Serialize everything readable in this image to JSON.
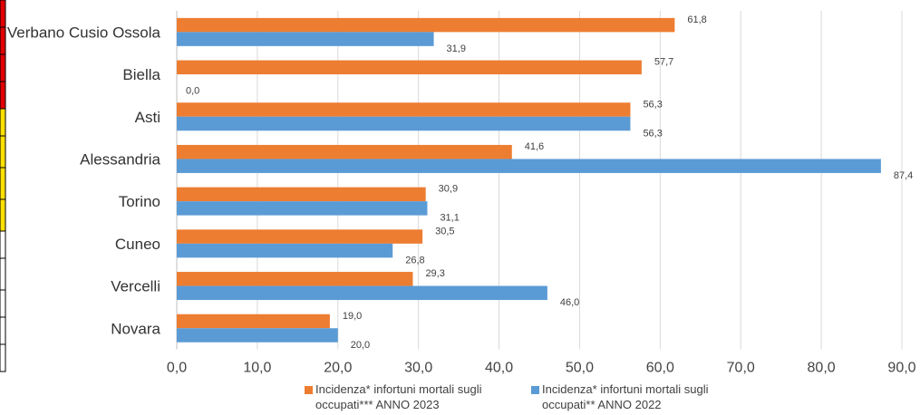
{
  "chart_data": {
    "type": "bar",
    "orientation": "horizontal",
    "categories": [
      "Verbano Cusio Ossola",
      "Biella",
      "Asti",
      "Alessandria",
      "Torino",
      "Cuneo",
      "Vercelli",
      "Novara"
    ],
    "series": [
      {
        "name": "Incidenza* infortuni mortali sugli occupati*** ANNO 2023",
        "color": "#ED7D31",
        "values": [
          61.8,
          57.7,
          56.3,
          41.6,
          30.9,
          30.5,
          29.3,
          19.0
        ],
        "labels": [
          "61,8",
          "57,7",
          "56,3",
          "41,6",
          "30,9",
          "30,5",
          "29,3",
          "19,0"
        ]
      },
      {
        "name": "Incidenza* infortuni mortali sugli occupati** ANNO 2022",
        "color": "#5B9BD5",
        "values": [
          31.9,
          0.0,
          56.3,
          87.4,
          31.1,
          26.8,
          46.0,
          20.0
        ],
        "labels": [
          "31,9",
          "0,0",
          "56,3",
          "87,4",
          "31,1",
          "26,8",
          "46,0",
          "20,0"
        ]
      }
    ],
    "x_ticks": [
      "0,0",
      "10,0",
      "20,0",
      "30,0",
      "40,0",
      "50,0",
      "60,0",
      "70,0",
      "80,0",
      "90,0"
    ],
    "xlim": [
      0,
      90
    ],
    "grid": true,
    "legend_position": "bottom",
    "left_strip_colors": [
      "#E00000",
      "#FFE000",
      "#FFFFFF"
    ]
  }
}
